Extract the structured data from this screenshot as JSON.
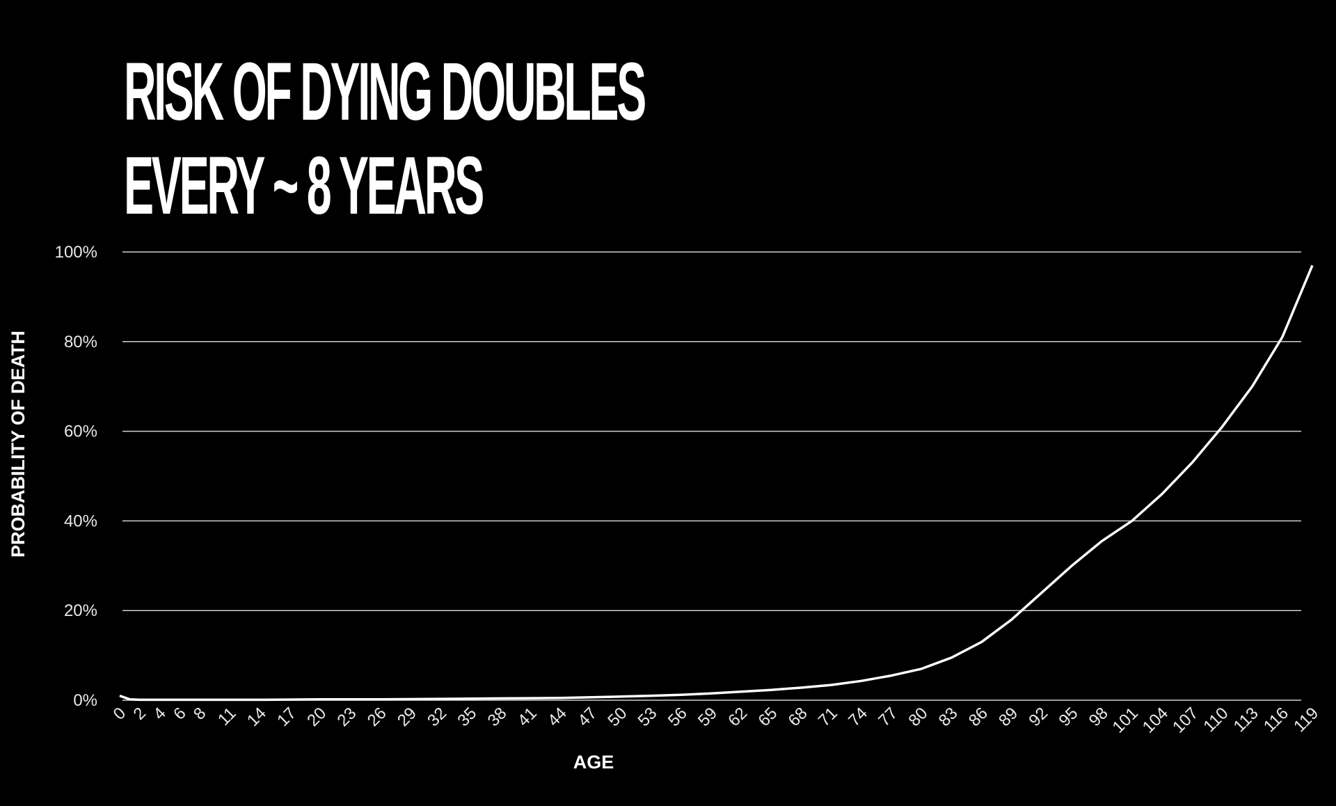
{
  "chart_data": {
    "type": "line",
    "title": [
      "RISK OF DYING DOUBLES",
      "EVERY ~ 8 YEARS"
    ],
    "x_label": "AGE",
    "y_label": "PROBABILITY OF DEATH",
    "x": [
      0,
      1,
      2,
      4,
      8,
      14,
      20,
      26,
      32,
      38,
      44,
      50,
      53,
      56,
      59,
      62,
      65,
      68,
      71,
      74,
      77,
      80,
      83,
      86,
      89,
      92,
      95,
      98,
      101,
      104,
      107,
      110,
      113,
      116,
      119
    ],
    "series": [
      {
        "name": "Probability of death",
        "color": "#ffffff",
        "values": [
          1,
          0.2,
          0.1,
          0.1,
          0.1,
          0.1,
          0.2,
          0.2,
          0.3,
          0.4,
          0.5,
          0.8,
          1,
          1.2,
          1.5,
          1.9,
          2.3,
          2.8,
          3.4,
          4.3,
          5.5,
          7,
          9.5,
          13,
          18,
          24,
          30,
          35.5,
          40,
          46,
          53,
          61,
          70,
          81,
          97
        ]
      }
    ],
    "xlim": [
      0,
      119
    ],
    "xticks": [
      0,
      2,
      4,
      6,
      8,
      11,
      14,
      17,
      20,
      23,
      26,
      29,
      32,
      35,
      38,
      41,
      44,
      47,
      50,
      53,
      56,
      59,
      62,
      65,
      68,
      71,
      74,
      77,
      80,
      83,
      86,
      89,
      92,
      95,
      98,
      101,
      104,
      107,
      110,
      113,
      116,
      119
    ],
    "ylim": [
      0,
      100
    ],
    "yticks": [
      {
        "value": 0,
        "label": "0%"
      },
      {
        "value": 20,
        "label": "20%"
      },
      {
        "value": 40,
        "label": "40%"
      },
      {
        "value": 60,
        "label": "60%"
      },
      {
        "value": 80,
        "label": "80%"
      },
      {
        "value": 100,
        "label": "100%"
      }
    ],
    "grid": true
  }
}
